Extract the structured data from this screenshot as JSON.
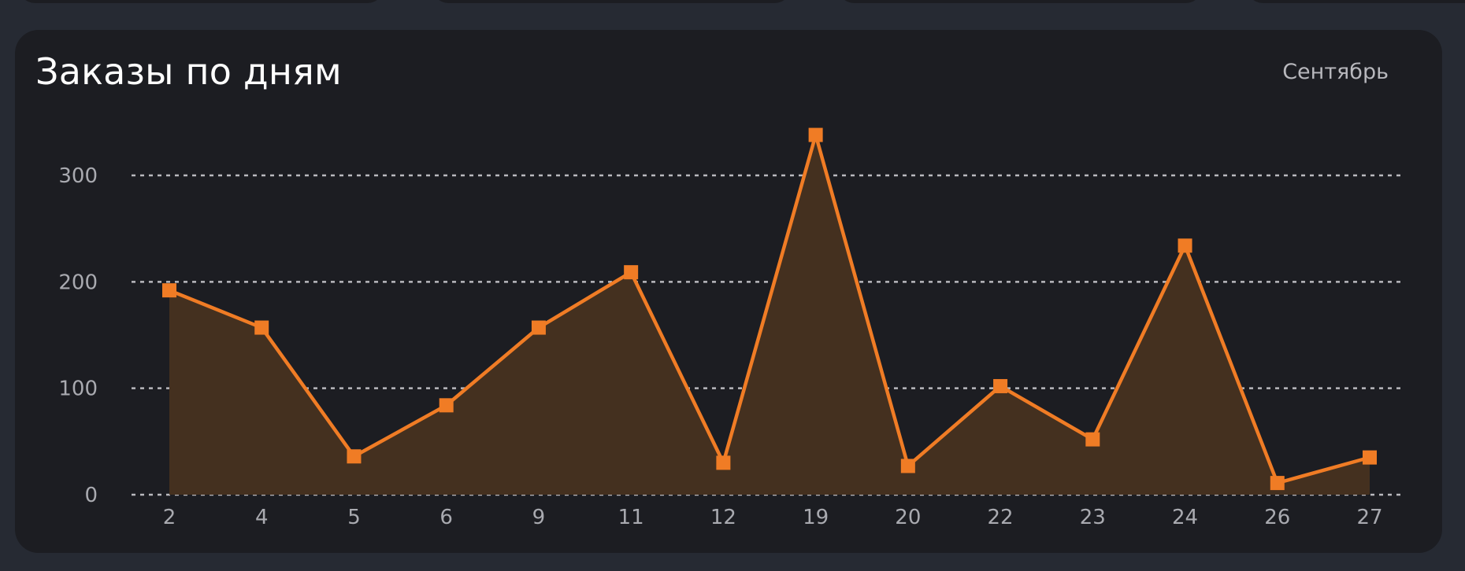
{
  "card": {
    "title": "Заказы по дням",
    "period_label": "Сентябрь"
  },
  "colors": {
    "background": "#262a33",
    "card": "#1c1d22",
    "accent": "#f07c25",
    "area_fill": "#44301f",
    "grid": "#b9b9be",
    "tick_text": "#a9aab0"
  },
  "chart_data": {
    "type": "area",
    "title": "Заказы по дням",
    "xlabel": "",
    "ylabel": "",
    "categories": [
      "2",
      "4",
      "5",
      "6",
      "9",
      "11",
      "12",
      "19",
      "20",
      "22",
      "23",
      "24",
      "26",
      "27"
    ],
    "series": [
      {
        "values": [
          192,
          157,
          36,
          84,
          157,
          209,
          30,
          338,
          27,
          102,
          52,
          234,
          11,
          35
        ]
      }
    ],
    "yticks": [
      "0",
      "100",
      "200",
      "300"
    ],
    "ylim": [
      0,
      340
    ],
    "grid": true,
    "grid_style": "dashed",
    "marker": "square",
    "legend": "none"
  }
}
